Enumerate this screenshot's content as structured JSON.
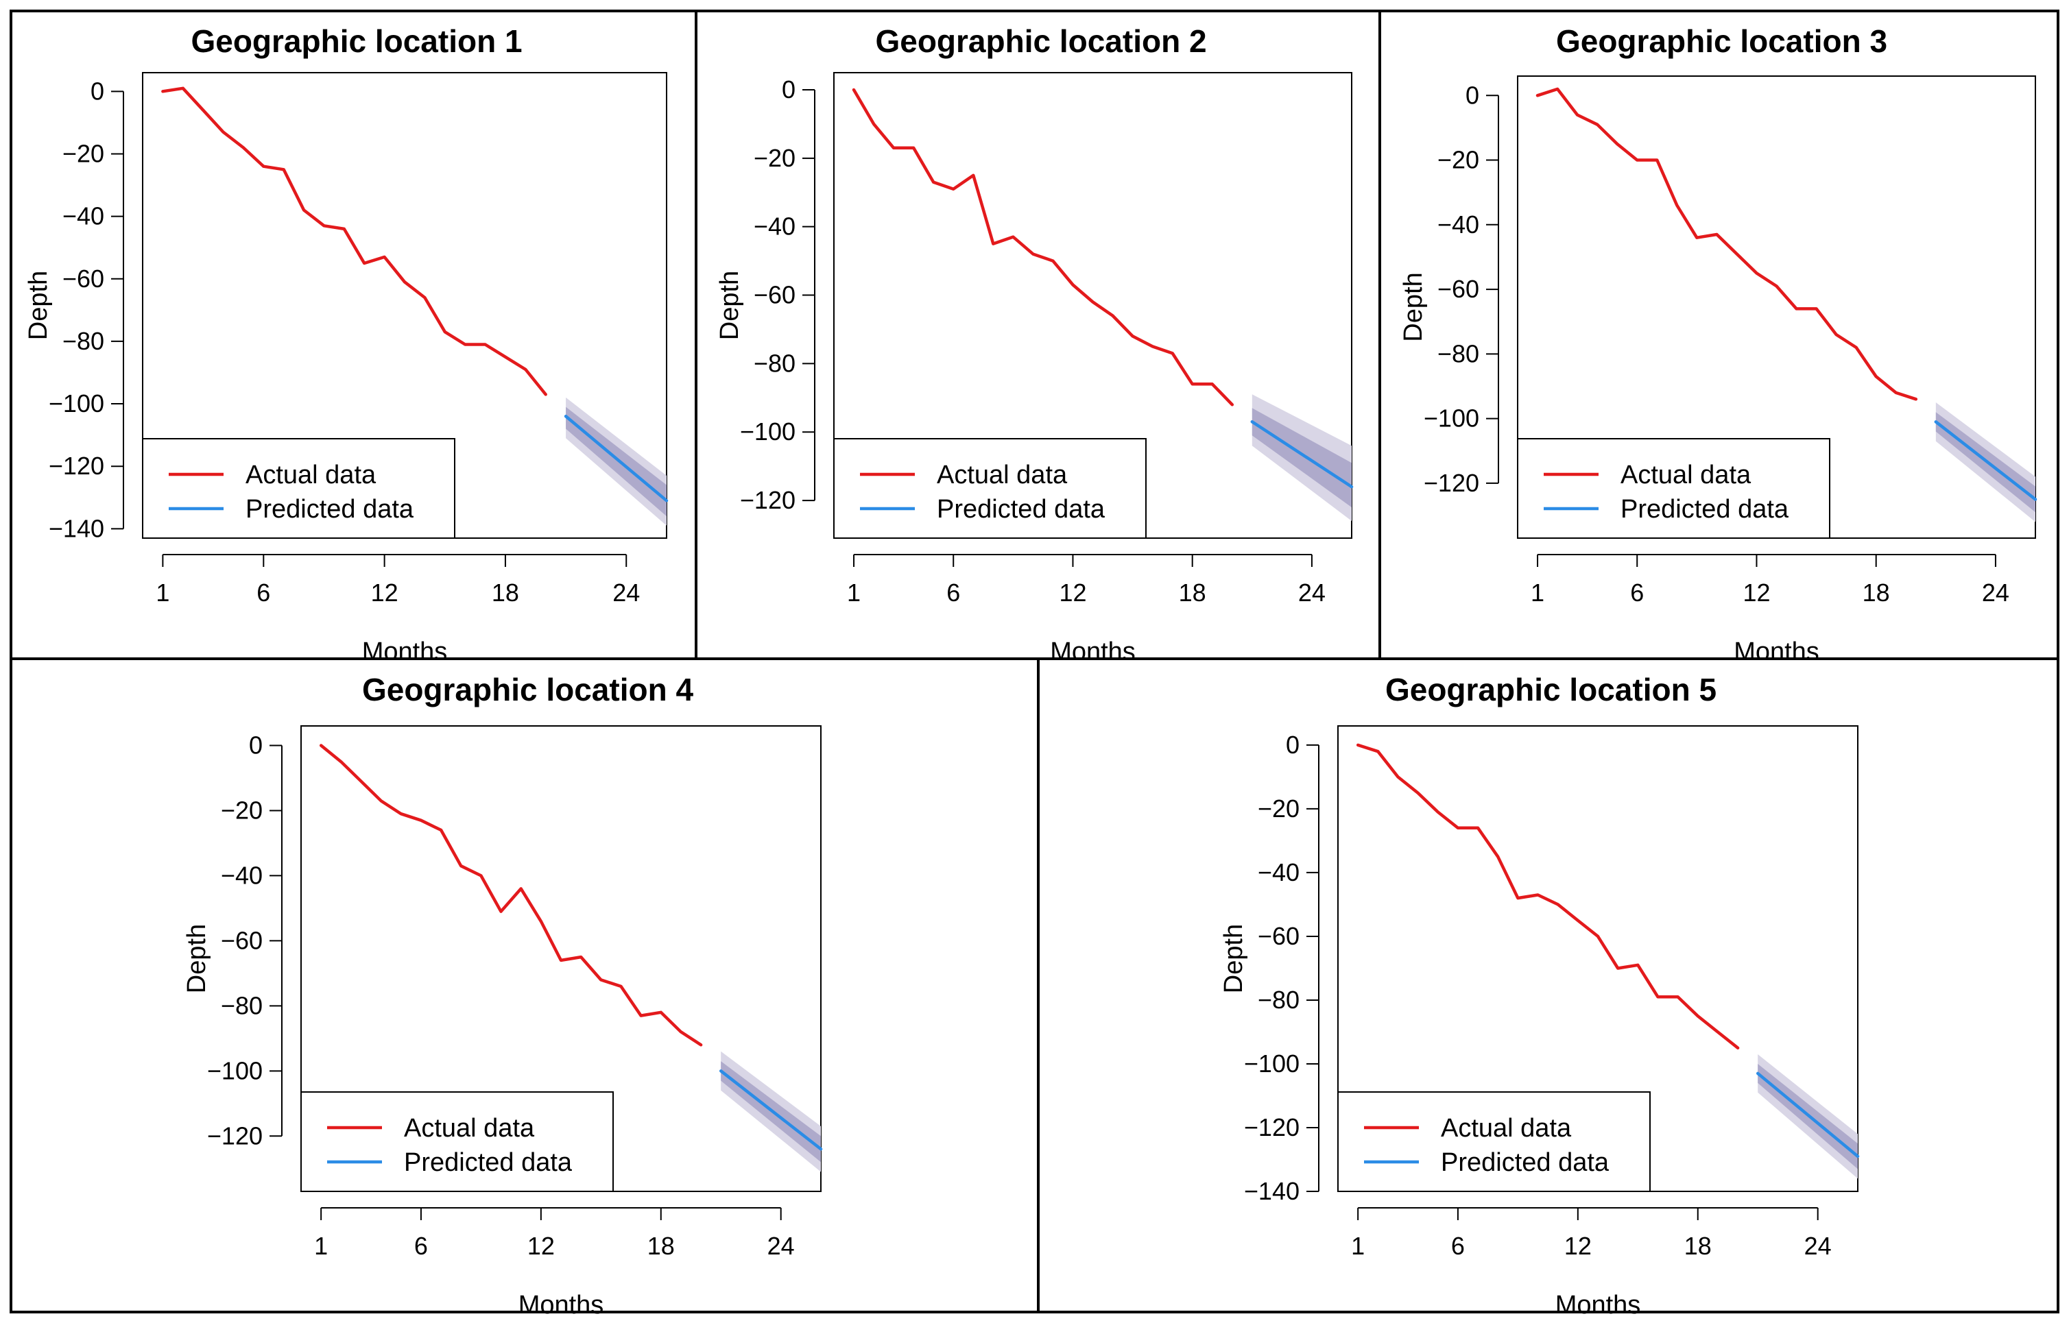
{
  "chart_data": [
    {
      "type": "line",
      "title": "Geographic location 1",
      "xlabel": "Months",
      "ylabel": "Depth",
      "xlim": [
        0,
        26
      ],
      "ylim": [
        -143,
        6
      ],
      "xticks": [
        1,
        6,
        12,
        18,
        24
      ],
      "yticks": [
        0,
        -20,
        -40,
        -60,
        -80,
        -100,
        -120,
        -140
      ],
      "legend": {
        "position": "bottom-left",
        "entries": [
          "Actual data",
          "Predicted data"
        ]
      },
      "series": [
        {
          "name": "Actual data",
          "color": "#e31a1c",
          "x": [
            1,
            2,
            3,
            4,
            5,
            6,
            7,
            8,
            9,
            10,
            11,
            12,
            13,
            14,
            15,
            16,
            17,
            18,
            19,
            20
          ],
          "y": [
            0,
            1,
            -6,
            -13,
            -18,
            -24,
            -25,
            -38,
            -43,
            -44,
            -55,
            -53,
            -61,
            -66,
            -77,
            -81,
            -81,
            -85,
            -89,
            -97
          ]
        },
        {
          "name": "Predicted data",
          "color": "#2b8ce6",
          "x": [
            21,
            26
          ],
          "y": [
            -104,
            -131
          ],
          "band_inner": {
            "upper": [
              -101,
              -126
            ],
            "lower": [
              -108,
              -136
            ]
          },
          "band_outer": {
            "upper": [
              -98,
              -123
            ],
            "lower": [
              -111,
              -139
            ]
          }
        }
      ]
    },
    {
      "type": "line",
      "title": "Geographic location 2",
      "xlabel": "Months",
      "ylabel": "Depth",
      "xlim": [
        0,
        26
      ],
      "ylim": [
        -131,
        5
      ],
      "xticks": [
        1,
        6,
        12,
        18,
        24
      ],
      "yticks": [
        0,
        -20,
        -40,
        -60,
        -80,
        -100,
        -120
      ],
      "legend": {
        "position": "bottom-left",
        "entries": [
          "Actual data",
          "Predicted data"
        ]
      },
      "series": [
        {
          "name": "Actual data",
          "color": "#e31a1c",
          "x": [
            1,
            2,
            3,
            4,
            5,
            6,
            7,
            8,
            9,
            10,
            11,
            12,
            13,
            14,
            15,
            16,
            17,
            18,
            19,
            20
          ],
          "y": [
            0,
            -10,
            -17,
            -17,
            -27,
            -29,
            -25,
            -45,
            -43,
            -48,
            -50,
            -57,
            -62,
            -66,
            -72,
            -75,
            -77,
            -86,
            -86,
            -92
          ]
        },
        {
          "name": "Predicted data",
          "color": "#2b8ce6",
          "x": [
            21,
            26
          ],
          "y": [
            -97,
            -116
          ],
          "band_inner": {
            "upper": [
              -93,
              -109
            ],
            "lower": [
              -101,
              -122
            ]
          },
          "band_outer": {
            "upper": [
              -89,
              -104
            ],
            "lower": [
              -104,
              -126
            ]
          }
        }
      ]
    },
    {
      "type": "line",
      "title": "Geographic location 3",
      "xlabel": "Months",
      "ylabel": "Depth",
      "xlim": [
        0,
        26
      ],
      "ylim": [
        -137,
        6
      ],
      "xticks": [
        1,
        6,
        12,
        18,
        24
      ],
      "yticks": [
        0,
        -20,
        -40,
        -60,
        -80,
        -100,
        -120
      ],
      "legend": {
        "position": "bottom-left",
        "entries": [
          "Actual data",
          "Predicted data"
        ]
      },
      "series": [
        {
          "name": "Actual data",
          "color": "#e31a1c",
          "x": [
            1,
            2,
            3,
            4,
            5,
            6,
            7,
            8,
            9,
            10,
            11,
            12,
            13,
            14,
            15,
            16,
            17,
            18,
            19,
            20
          ],
          "y": [
            0,
            2,
            -6,
            -9,
            -15,
            -20,
            -20,
            -34,
            -44,
            -43,
            -49,
            -55,
            -59,
            -66,
            -66,
            -74,
            -78,
            -87,
            -92,
            -94
          ]
        },
        {
          "name": "Predicted data",
          "color": "#2b8ce6",
          "x": [
            21,
            26
          ],
          "y": [
            -101,
            -125
          ],
          "band_inner": {
            "upper": [
              -98,
              -121
            ],
            "lower": [
              -104,
              -129
            ]
          },
          "band_outer": {
            "upper": [
              -95,
              -118
            ],
            "lower": [
              -107,
              -132
            ]
          }
        }
      ]
    },
    {
      "type": "line",
      "title": "Geographic location 4",
      "xlabel": "Months",
      "ylabel": "Depth",
      "xlim": [
        0,
        26
      ],
      "ylim": [
        -137,
        6
      ],
      "xticks": [
        1,
        6,
        12,
        18,
        24
      ],
      "yticks": [
        0,
        -20,
        -40,
        -60,
        -80,
        -100,
        -120
      ],
      "legend": {
        "position": "bottom-left",
        "entries": [
          "Actual data",
          "Predicted data"
        ]
      },
      "series": [
        {
          "name": "Actual data",
          "color": "#e31a1c",
          "x": [
            1,
            2,
            3,
            4,
            5,
            6,
            7,
            8,
            9,
            10,
            11,
            12,
            13,
            14,
            15,
            16,
            17,
            18,
            19,
            20
          ],
          "y": [
            0,
            -5,
            -11,
            -17,
            -21,
            -23,
            -26,
            -37,
            -40,
            -51,
            -44,
            -54,
            -66,
            -65,
            -72,
            -74,
            -83,
            -82,
            -88,
            -92
          ]
        },
        {
          "name": "Predicted data",
          "color": "#2b8ce6",
          "x": [
            21,
            26
          ],
          "y": [
            -100,
            -124
          ],
          "band_inner": {
            "upper": [
              -97,
              -120
            ],
            "lower": [
              -103,
              -128
            ]
          },
          "band_outer": {
            "upper": [
              -94,
              -117
            ],
            "lower": [
              -106,
              -131
            ]
          }
        }
      ]
    },
    {
      "type": "line",
      "title": "Geographic location 5",
      "xlabel": "Months",
      "ylabel": "Depth",
      "xlim": [
        0,
        26
      ],
      "ylim": [
        -140,
        6
      ],
      "xticks": [
        1,
        6,
        12,
        18,
        24
      ],
      "yticks": [
        0,
        -20,
        -40,
        -60,
        -80,
        -100,
        -120,
        -140
      ],
      "legend": {
        "position": "bottom-left",
        "entries": [
          "Actual data",
          "Predicted data"
        ]
      },
      "series": [
        {
          "name": "Actual data",
          "color": "#e31a1c",
          "x": [
            1,
            2,
            3,
            4,
            5,
            6,
            7,
            8,
            9,
            10,
            11,
            12,
            13,
            14,
            15,
            16,
            17,
            18,
            19,
            20
          ],
          "y": [
            0,
            -2,
            -10,
            -15,
            -21,
            -26,
            -26,
            -35,
            -48,
            -47,
            -50,
            -55,
            -60,
            -70,
            -69,
            -79,
            -79,
            -85,
            -90,
            -95
          ]
        },
        {
          "name": "Predicted data",
          "color": "#2b8ce6",
          "x": [
            21,
            26
          ],
          "y": [
            -103,
            -129
          ],
          "band_inner": {
            "upper": [
              -100,
              -125
            ],
            "lower": [
              -106,
              -133
            ]
          },
          "band_outer": {
            "upper": [
              -97,
              -122
            ],
            "lower": [
              -109,
              -136
            ]
          }
        }
      ]
    }
  ]
}
